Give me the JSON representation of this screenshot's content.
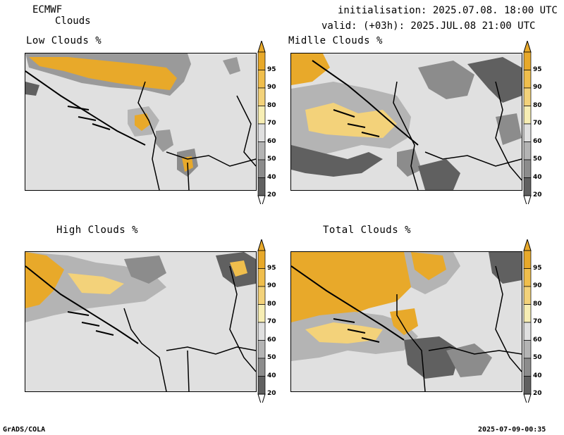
{
  "header": {
    "model": "ECMWF",
    "product": "Clouds",
    "init": "initialisation: 2025.07.08. 18:00 UTC",
    "valid": "valid: (+03h): 2025.JUL.08 21:00 UTC"
  },
  "panels": [
    {
      "title": "Low Clouds %"
    },
    {
      "title": "Midlle Clouds %"
    },
    {
      "title": "High Clouds %"
    },
    {
      "title": "Total Clouds %"
    }
  ],
  "colorbar": {
    "labels": [
      "95",
      "90",
      "80",
      "70",
      "60",
      "50",
      "40",
      "20"
    ],
    "colors": [
      "#e8a92a",
      "#f0be4c",
      "#f3d27a",
      "#f7eeb4",
      "#e0e0e0",
      "#b4b4b4",
      "#8c8c8c",
      "#606060"
    ]
  },
  "footer": {
    "left": "GrADS/COLA",
    "right": "2025-07-09-00:35"
  }
}
